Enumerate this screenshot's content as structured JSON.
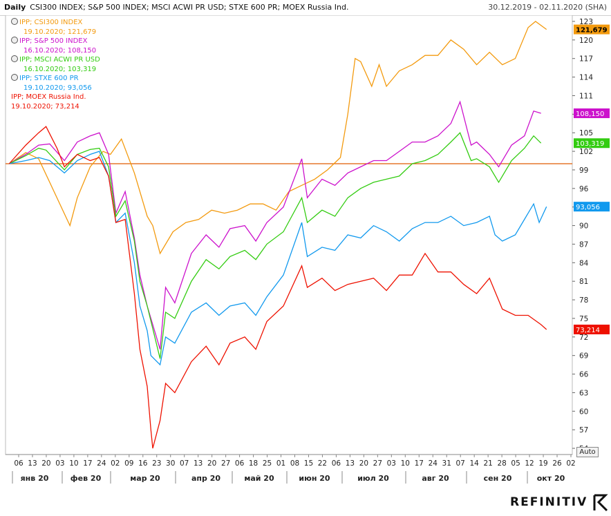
{
  "header": {
    "interval": "Daily",
    "instruments": "CSI300 INDEX; S&P 500 INDEX; MSCI ACWI PR USD; STXE 600 PR; MOEX Russia Ind.",
    "date_range": "30.12.2019 - 02.11.2020 (SHA)"
  },
  "auto_label": "Auto",
  "brand": "REFINITIV",
  "legend": [
    {
      "name": "IPP; CSI300 INDEX",
      "date": "19.10.2020; 121,679",
      "color": "#f39a0e"
    },
    {
      "name": "IPP; S&P 500 INDEX",
      "date": "16.10.2020; 108,150",
      "color": "#cc11cc"
    },
    {
      "name": "IPP; MSCI ACWI PR USD",
      "date": "16.10.2020; 103,319",
      "color": "#33cc11"
    },
    {
      "name": "IPP; STXE 600 PR",
      "date": "19.10.2020; 93,056",
      "color": "#1199ee"
    },
    {
      "name": "IPP; MOEX Russia Ind.",
      "date": "19.10.2020; 73,214",
      "color": "#ee1100"
    }
  ],
  "chart_data": {
    "type": "line",
    "reference_line": 100,
    "ylim": [
      53,
      124
    ],
    "y_ticks": [
      54,
      57,
      60,
      63,
      66,
      69,
      72,
      75,
      78,
      81,
      84,
      87,
      90,
      93,
      96,
      99,
      102,
      105,
      108,
      111,
      114,
      117,
      120,
      123
    ],
    "day_labels": [
      "06",
      "13",
      "20",
      "03",
      "10",
      "17",
      "24",
      "02",
      "09",
      "16",
      "23",
      "30",
      "07",
      "13",
      "20",
      "27",
      "06",
      "18",
      "25",
      "01",
      "08",
      "15",
      "22",
      "06",
      "13",
      "20",
      "27",
      "03",
      "10",
      "17",
      "24",
      "31",
      "07",
      "14",
      "21",
      "28",
      "05",
      "12",
      "19",
      "26",
      "02"
    ],
    "month_labels": [
      "янв 20",
      "фев 20",
      "мар 20",
      "апр 20",
      "май 20",
      "июн 20",
      "июл 20",
      "авг 20",
      "сен 20",
      "окт 20"
    ],
    "series": [
      {
        "name": "IPP; CSI300 INDEX",
        "color": "#f39a0e",
        "last_label": "121,679",
        "points": [
          [
            "2020-01-01",
            100
          ],
          [
            "2020-01-10",
            101.8
          ],
          [
            "2020-01-17",
            100.8
          ],
          [
            "2020-01-23",
            97
          ],
          [
            "2020-02-03",
            90
          ],
          [
            "2020-02-07",
            94.5
          ],
          [
            "2020-02-14",
            99.5
          ],
          [
            "2020-02-21",
            102
          ],
          [
            "2020-02-25",
            101.5
          ],
          [
            "2020-03-02",
            104
          ],
          [
            "2020-03-09",
            98.5
          ],
          [
            "2020-03-16",
            91.5
          ],
          [
            "2020-03-19",
            90
          ],
          [
            "2020-03-23",
            85.5
          ],
          [
            "2020-03-30",
            89
          ],
          [
            "2020-04-06",
            90.5
          ],
          [
            "2020-04-13",
            91
          ],
          [
            "2020-04-20",
            92.5
          ],
          [
            "2020-04-27",
            92
          ],
          [
            "2020-05-04",
            92.5
          ],
          [
            "2020-05-11",
            93.5
          ],
          [
            "2020-05-18",
            93.5
          ],
          [
            "2020-05-25",
            92.5
          ],
          [
            "2020-06-01",
            95.5
          ],
          [
            "2020-06-08",
            96.5
          ],
          [
            "2020-06-15",
            97.5
          ],
          [
            "2020-06-22",
            99
          ],
          [
            "2020-06-29",
            101
          ],
          [
            "2020-07-03",
            108
          ],
          [
            "2020-07-07",
            117
          ],
          [
            "2020-07-10",
            116.5
          ],
          [
            "2020-07-16",
            112.5
          ],
          [
            "2020-07-20",
            116
          ],
          [
            "2020-07-24",
            112.5
          ],
          [
            "2020-07-31",
            115
          ],
          [
            "2020-08-07",
            116
          ],
          [
            "2020-08-14",
            117.5
          ],
          [
            "2020-08-21",
            117.5
          ],
          [
            "2020-08-28",
            120
          ],
          [
            "2020-09-04",
            118.5
          ],
          [
            "2020-09-11",
            116
          ],
          [
            "2020-09-18",
            118
          ],
          [
            "2020-09-25",
            116
          ],
          [
            "2020-10-02",
            117
          ],
          [
            "2020-10-09",
            122
          ],
          [
            "2020-10-13",
            123
          ],
          [
            "2020-10-19",
            121.7
          ]
        ]
      },
      {
        "name": "IPP; S&P 500 INDEX",
        "color": "#cc11cc",
        "last_label": "108,150",
        "points": [
          [
            "2020-01-01",
            100
          ],
          [
            "2020-01-10",
            101.5
          ],
          [
            "2020-01-17",
            103
          ],
          [
            "2020-01-23",
            103.2
          ],
          [
            "2020-01-31",
            100.5
          ],
          [
            "2020-02-07",
            103.5
          ],
          [
            "2020-02-14",
            104.5
          ],
          [
            "2020-02-19",
            105
          ],
          [
            "2020-02-24",
            101.5
          ],
          [
            "2020-02-28",
            92
          ],
          [
            "2020-03-04",
            95.5
          ],
          [
            "2020-03-09",
            88
          ],
          [
            "2020-03-12",
            82
          ],
          [
            "2020-03-16",
            77
          ],
          [
            "2020-03-23",
            70
          ],
          [
            "2020-03-26",
            80
          ],
          [
            "2020-03-31",
            77.5
          ],
          [
            "2020-04-09",
            85.5
          ],
          [
            "2020-04-17",
            88.5
          ],
          [
            "2020-04-24",
            86.5
          ],
          [
            "2020-04-30",
            89.5
          ],
          [
            "2020-05-08",
            90
          ],
          [
            "2020-05-14",
            87.5
          ],
          [
            "2020-05-20",
            90.5
          ],
          [
            "2020-05-29",
            93
          ],
          [
            "2020-06-08",
            100.8
          ],
          [
            "2020-06-11",
            94.5
          ],
          [
            "2020-06-19",
            97.5
          ],
          [
            "2020-06-26",
            96.5
          ],
          [
            "2020-07-03",
            98.5
          ],
          [
            "2020-07-10",
            99.5
          ],
          [
            "2020-07-17",
            100.5
          ],
          [
            "2020-07-24",
            100.5
          ],
          [
            "2020-07-31",
            102
          ],
          [
            "2020-08-07",
            103.5
          ],
          [
            "2020-08-14",
            103.5
          ],
          [
            "2020-08-21",
            104.5
          ],
          [
            "2020-08-28",
            106.5
          ],
          [
            "2020-09-02",
            110
          ],
          [
            "2020-09-08",
            103
          ],
          [
            "2020-09-11",
            103.5
          ],
          [
            "2020-09-18",
            101.5
          ],
          [
            "2020-09-23",
            99.5
          ],
          [
            "2020-09-30",
            103
          ],
          [
            "2020-10-07",
            104.5
          ],
          [
            "2020-10-12",
            108.5
          ],
          [
            "2020-10-16",
            108.15
          ]
        ]
      },
      {
        "name": "IPP; MSCI ACWI PR USD",
        "color": "#33cc11",
        "last_label": "103,319",
        "points": [
          [
            "2020-01-01",
            100
          ],
          [
            "2020-01-10",
            101.3
          ],
          [
            "2020-01-17",
            102.5
          ],
          [
            "2020-01-21",
            102.2
          ],
          [
            "2020-01-31",
            99
          ],
          [
            "2020-02-07",
            101.5
          ],
          [
            "2020-02-14",
            102.3
          ],
          [
            "2020-02-19",
            102.5
          ],
          [
            "2020-02-24",
            99.5
          ],
          [
            "2020-02-28",
            91.5
          ],
          [
            "2020-03-04",
            94
          ],
          [
            "2020-03-09",
            87.5
          ],
          [
            "2020-03-12",
            81
          ],
          [
            "2020-03-16",
            77
          ],
          [
            "2020-03-23",
            68.5
          ],
          [
            "2020-03-26",
            76
          ],
          [
            "2020-03-31",
            75
          ],
          [
            "2020-04-09",
            81
          ],
          [
            "2020-04-17",
            84.5
          ],
          [
            "2020-04-24",
            83
          ],
          [
            "2020-04-30",
            85
          ],
          [
            "2020-05-08",
            86
          ],
          [
            "2020-05-14",
            84.5
          ],
          [
            "2020-05-20",
            87
          ],
          [
            "2020-05-29",
            89
          ],
          [
            "2020-06-08",
            94.5
          ],
          [
            "2020-06-11",
            90.5
          ],
          [
            "2020-06-19",
            92.5
          ],
          [
            "2020-06-26",
            91.5
          ],
          [
            "2020-07-03",
            94.5
          ],
          [
            "2020-07-10",
            96
          ],
          [
            "2020-07-17",
            97
          ],
          [
            "2020-07-24",
            97.5
          ],
          [
            "2020-07-31",
            98
          ],
          [
            "2020-08-07",
            100
          ],
          [
            "2020-08-14",
            100.5
          ],
          [
            "2020-08-21",
            101.5
          ],
          [
            "2020-08-28",
            103.5
          ],
          [
            "2020-09-02",
            105
          ],
          [
            "2020-09-08",
            100.5
          ],
          [
            "2020-09-11",
            100.8
          ],
          [
            "2020-09-18",
            99.5
          ],
          [
            "2020-09-23",
            97
          ],
          [
            "2020-09-30",
            100.5
          ],
          [
            "2020-10-07",
            102.5
          ],
          [
            "2020-10-12",
            104.5
          ],
          [
            "2020-10-16",
            103.32
          ]
        ]
      },
      {
        "name": "IPP; STXE 600 PR",
        "color": "#1199ee",
        "last_label": "93,056",
        "points": [
          [
            "2020-01-01",
            100
          ],
          [
            "2020-01-10",
            100.5
          ],
          [
            "2020-01-17",
            101
          ],
          [
            "2020-01-23",
            100.5
          ],
          [
            "2020-01-31",
            98.5
          ],
          [
            "2020-02-07",
            100.5
          ],
          [
            "2020-02-14",
            101.5
          ],
          [
            "2020-02-19",
            102
          ],
          [
            "2020-02-24",
            98
          ],
          [
            "2020-02-28",
            90.5
          ],
          [
            "2020-03-04",
            92
          ],
          [
            "2020-03-09",
            84
          ],
          [
            "2020-03-12",
            77
          ],
          [
            "2020-03-16",
            73
          ],
          [
            "2020-03-18",
            69
          ],
          [
            "2020-03-23",
            67.5
          ],
          [
            "2020-03-26",
            72
          ],
          [
            "2020-03-31",
            71
          ],
          [
            "2020-04-09",
            76
          ],
          [
            "2020-04-17",
            77.5
          ],
          [
            "2020-04-24",
            75.5
          ],
          [
            "2020-04-30",
            77
          ],
          [
            "2020-05-08",
            77.5
          ],
          [
            "2020-05-14",
            75.5
          ],
          [
            "2020-05-20",
            78.5
          ],
          [
            "2020-05-29",
            82
          ],
          [
            "2020-06-08",
            90.5
          ],
          [
            "2020-06-11",
            85
          ],
          [
            "2020-06-19",
            86.5
          ],
          [
            "2020-06-26",
            86
          ],
          [
            "2020-07-03",
            88.5
          ],
          [
            "2020-07-10",
            88
          ],
          [
            "2020-07-17",
            90
          ],
          [
            "2020-07-24",
            89
          ],
          [
            "2020-07-31",
            87.5
          ],
          [
            "2020-08-07",
            89.5
          ],
          [
            "2020-08-14",
            90.5
          ],
          [
            "2020-08-21",
            90.5
          ],
          [
            "2020-08-28",
            91.5
          ],
          [
            "2020-09-04",
            90
          ],
          [
            "2020-09-11",
            90.5
          ],
          [
            "2020-09-18",
            91.5
          ],
          [
            "2020-09-21",
            88.5
          ],
          [
            "2020-09-25",
            87.5
          ],
          [
            "2020-10-02",
            88.5
          ],
          [
            "2020-10-09",
            92
          ],
          [
            "2020-10-12",
            93.5
          ],
          [
            "2020-10-15",
            90.5
          ],
          [
            "2020-10-19",
            93.06
          ]
        ]
      },
      {
        "name": "IPP; MOEX Russia Ind.",
        "color": "#ee1100",
        "last_label": "73,214",
        "points": [
          [
            "2020-01-01",
            100
          ],
          [
            "2020-01-10",
            103
          ],
          [
            "2020-01-17",
            105
          ],
          [
            "2020-01-21",
            106
          ],
          [
            "2020-01-27",
            102.5
          ],
          [
            "2020-01-31",
            99.5
          ],
          [
            "2020-02-07",
            101.5
          ],
          [
            "2020-02-14",
            100.5
          ],
          [
            "2020-02-19",
            101
          ],
          [
            "2020-02-24",
            98
          ],
          [
            "2020-02-28",
            90.5
          ],
          [
            "2020-03-04",
            91
          ],
          [
            "2020-03-09",
            79
          ],
          [
            "2020-03-12",
            70
          ],
          [
            "2020-03-16",
            64
          ],
          [
            "2020-03-18",
            57
          ],
          [
            "2020-03-19",
            54
          ],
          [
            "2020-03-23",
            58.5
          ],
          [
            "2020-03-26",
            64.5
          ],
          [
            "2020-03-31",
            63
          ],
          [
            "2020-04-09",
            68
          ],
          [
            "2020-04-17",
            70.5
          ],
          [
            "2020-04-24",
            67.5
          ],
          [
            "2020-04-30",
            71
          ],
          [
            "2020-05-08",
            72
          ],
          [
            "2020-05-14",
            70
          ],
          [
            "2020-05-20",
            74.5
          ],
          [
            "2020-05-29",
            77
          ],
          [
            "2020-06-08",
            83.5
          ],
          [
            "2020-06-11",
            80
          ],
          [
            "2020-06-19",
            81.5
          ],
          [
            "2020-06-26",
            79.5
          ],
          [
            "2020-07-03",
            80.5
          ],
          [
            "2020-07-10",
            81
          ],
          [
            "2020-07-17",
            81.5
          ],
          [
            "2020-07-24",
            79.5
          ],
          [
            "2020-07-31",
            82
          ],
          [
            "2020-08-07",
            82
          ],
          [
            "2020-08-14",
            85.5
          ],
          [
            "2020-08-21",
            82.5
          ],
          [
            "2020-08-28",
            82.5
          ],
          [
            "2020-09-04",
            80.5
          ],
          [
            "2020-09-11",
            79
          ],
          [
            "2020-09-18",
            81.5
          ],
          [
            "2020-09-25",
            76.5
          ],
          [
            "2020-10-02",
            75.5
          ],
          [
            "2020-10-09",
            75.5
          ],
          [
            "2020-10-16",
            74
          ],
          [
            "2020-10-19",
            73.21
          ]
        ]
      }
    ]
  }
}
